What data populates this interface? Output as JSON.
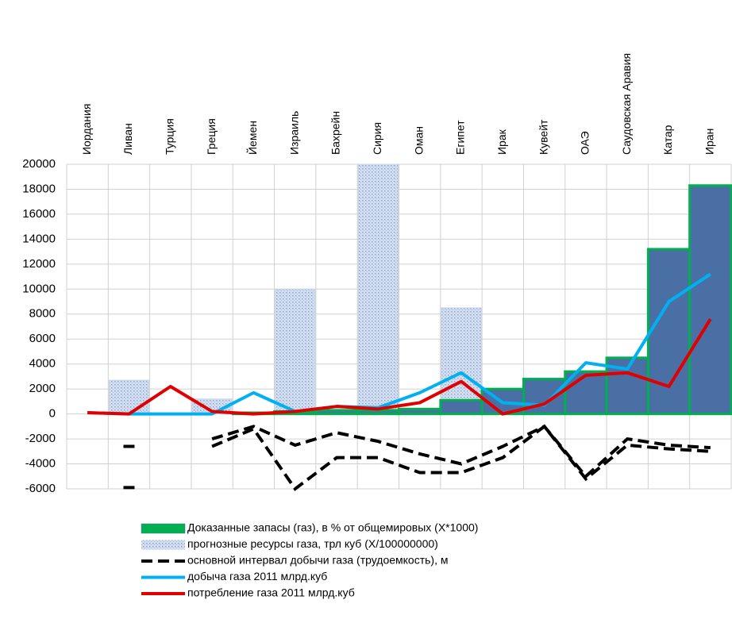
{
  "chart_data": {
    "type": "combo",
    "categories": [
      "Иордания",
      "Ливан",
      "Турция",
      "Греция",
      "Йемен",
      "Израиль",
      "Бахрейн",
      "Сирия",
      "Оман",
      "Египет",
      "Ирак",
      "Кувейт",
      "ОАЭ",
      "Саудовская Аравия",
      "Катар",
      "Иран"
    ],
    "ylim": [
      -6000,
      20000
    ],
    "yticks": [
      -6000,
      -4000,
      -2000,
      0,
      2000,
      4000,
      6000,
      8000,
      10000,
      12000,
      14000,
      16000,
      18000,
      20000
    ],
    "grid": true,
    "series": [
      {
        "name": "Доказанные запасы (газ), в % от общемировых  (X*1000)",
        "type": "bar",
        "color": "#4a6fa5",
        "edgecolor": "#00b050",
        "values": [
          null,
          null,
          null,
          null,
          100,
          200,
          300,
          300,
          400,
          1100,
          2000,
          2800,
          3400,
          4500,
          13200,
          18300
        ]
      },
      {
        "name": "прогнозные ресурсы газа, трл куб (X/100000000)",
        "type": "pattern-bar",
        "color": "#c6d5ec",
        "values": [
          null,
          2700,
          null,
          1200,
          null,
          10000,
          null,
          20000,
          null,
          8500,
          null,
          null,
          null,
          null,
          null,
          null
        ]
      },
      {
        "name": "основной интервал добычи газа (трудоемкость), м",
        "type": "dashed-band",
        "color": "#000000",
        "values": [
          null,
          -2600,
          null,
          -2000,
          -1000,
          -2500,
          -1500,
          -2200,
          -3200,
          -4000,
          -2600,
          -1000,
          -5000,
          -2000,
          -2500,
          -2700
        ],
        "values2": [
          null,
          -5900,
          null,
          -2600,
          -1200,
          -6000,
          -3500,
          -3500,
          -4700,
          -4700,
          -3500,
          -1000,
          -5200,
          -2500,
          -2800,
          -3000
        ]
      },
      {
        "name": "добыча газа 2011 млрд.куб",
        "type": "line",
        "color": "#00b0f0",
        "values": [
          100,
          0,
          0,
          0,
          1700,
          200,
          600,
          500,
          1700,
          3300,
          900,
          700,
          4100,
          3600,
          9000,
          11200
        ]
      },
      {
        "name": "потребление  газа 2011 млрд.куб",
        "type": "line",
        "color": "#e00000",
        "values": [
          100,
          0,
          2200,
          200,
          0,
          200,
          600,
          400,
          900,
          2600,
          0,
          800,
          3100,
          3300,
          2200,
          7600
        ]
      }
    ]
  }
}
